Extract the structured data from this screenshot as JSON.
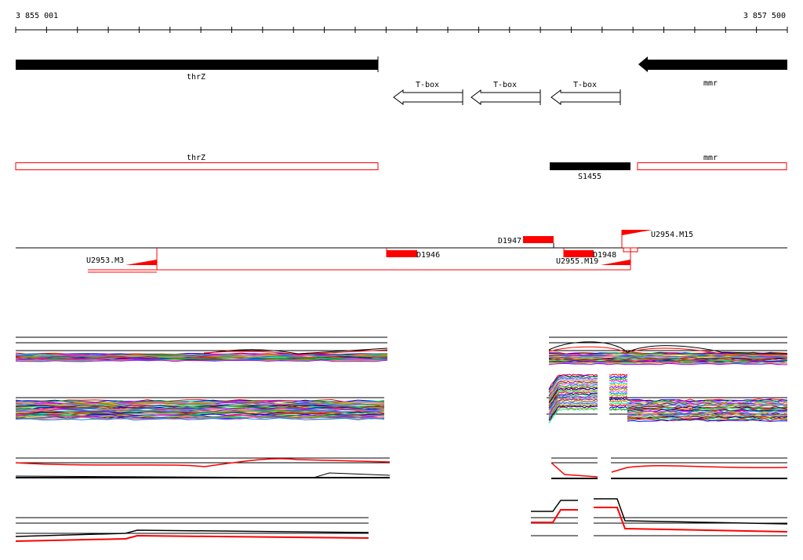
{
  "ruler": {
    "start_label": "3 855 001",
    "end_label": "3 857 500"
  },
  "colors": {
    "feature_red": "#ff0000",
    "gene_black": "#000000",
    "background": "#ffffff"
  },
  "annotated_genes": [
    {
      "name": "thrZ",
      "strand": "+"
    },
    {
      "name": "mmr",
      "strand": "-"
    }
  ],
  "tbox_elements": [
    {
      "label": "T-box",
      "strand": "-"
    },
    {
      "label": "T-box",
      "strand": "-"
    },
    {
      "label": "T-box",
      "strand": "-"
    }
  ],
  "predicted_genes": [
    {
      "name": "thrZ"
    },
    {
      "name": "mmr"
    }
  ],
  "srna": {
    "name": "S1455"
  },
  "features": {
    "D1947": "D1947",
    "D1946": "D1946",
    "D1948": "D1948",
    "U2954_M15": "U2954.M15",
    "U2953_M3": "U2953.M3",
    "U2955_M19": "U2955.M19"
  }
}
